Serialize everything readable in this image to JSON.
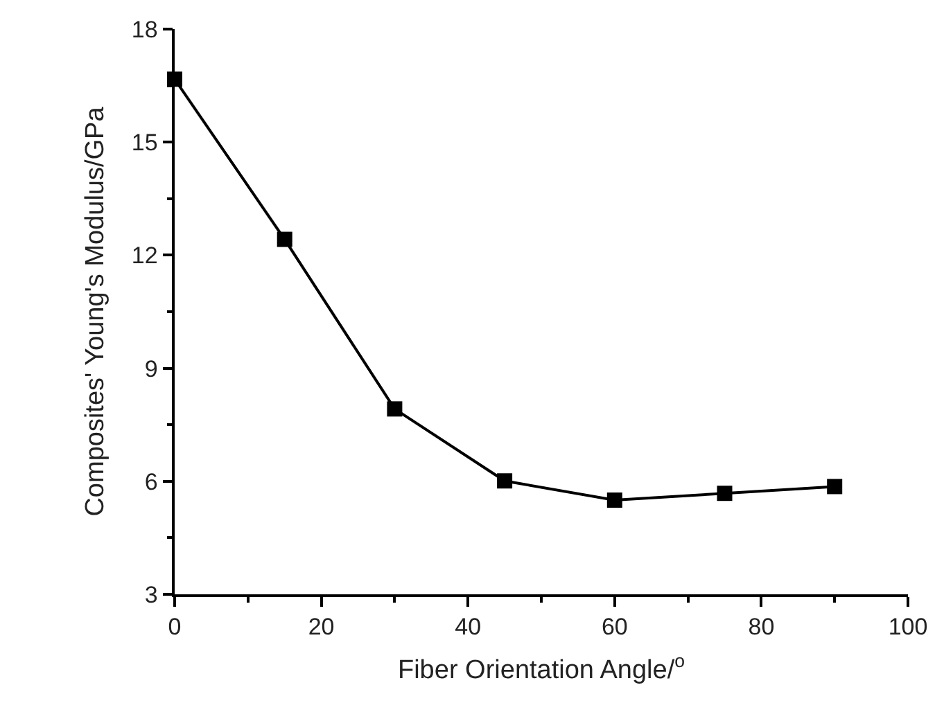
{
  "chart_data": {
    "type": "line",
    "xlabel": "Fiber Orientation Angle/$^{o}$",
    "ylabel": "Composites' Young's Modulus/GPa",
    "x": [
      0,
      15,
      30,
      45,
      60,
      75,
      90
    ],
    "series": [
      {
        "color": "#000000",
        "values": [
          16.67,
          12.42,
          7.92,
          6.01,
          5.5,
          5.68,
          5.86
        ]
      }
    ],
    "xlim": [
      0,
      100
    ],
    "xticks": [
      0,
      20,
      40,
      60,
      80,
      100
    ],
    "ylim": [
      3,
      18
    ],
    "yticks": [
      3,
      6,
      9,
      12,
      15,
      18
    ],
    "marker": "square",
    "line_style": "solid"
  }
}
